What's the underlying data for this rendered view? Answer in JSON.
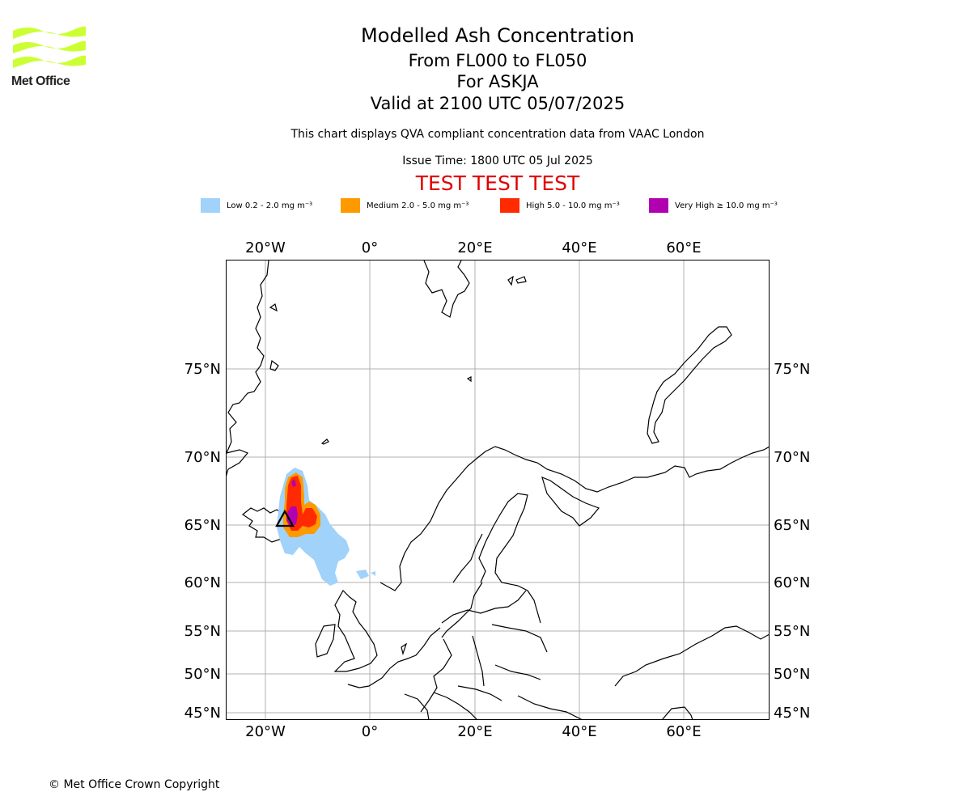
{
  "logo": {
    "text": "Met Office",
    "color": "#ccff33"
  },
  "header": {
    "title": "Modelled Ash Concentration",
    "level_range": "From FL000 to FL050",
    "volcano": "For ASKJA",
    "valid": "Valid at 2100 UTC 05/07/2025",
    "subtitle": "This chart displays QVA compliant concentration data from VAAC London",
    "issue": "Issue Time: 1800 UTC 05 Jul 2025",
    "test_banner": "TEST TEST TEST"
  },
  "legend": [
    {
      "label": "Low 0.2 - 2.0 mg m⁻³",
      "color": "#a0d2fa"
    },
    {
      "label": "Medium 2.0 - 5.0 mg m⁻³",
      "color": "#ff9900"
    },
    {
      "label": "High 5.0 - 10.0 mg m⁻³",
      "color": "#ff2a00"
    },
    {
      "label": "Very High ≥ 10.0 mg m⁻³",
      "color": "#b000b0"
    }
  ],
  "map": {
    "lon_labels": [
      "20°W",
      "0°",
      "20°E",
      "40°E",
      "60°E"
    ],
    "lat_labels": [
      "75°N",
      "70°N",
      "65°N",
      "60°N",
      "55°N",
      "50°N",
      "45°N"
    ],
    "grid": true,
    "volcano_marker": "triangle"
  },
  "footer": {
    "copyright": "© Met Office Crown Copyright"
  }
}
